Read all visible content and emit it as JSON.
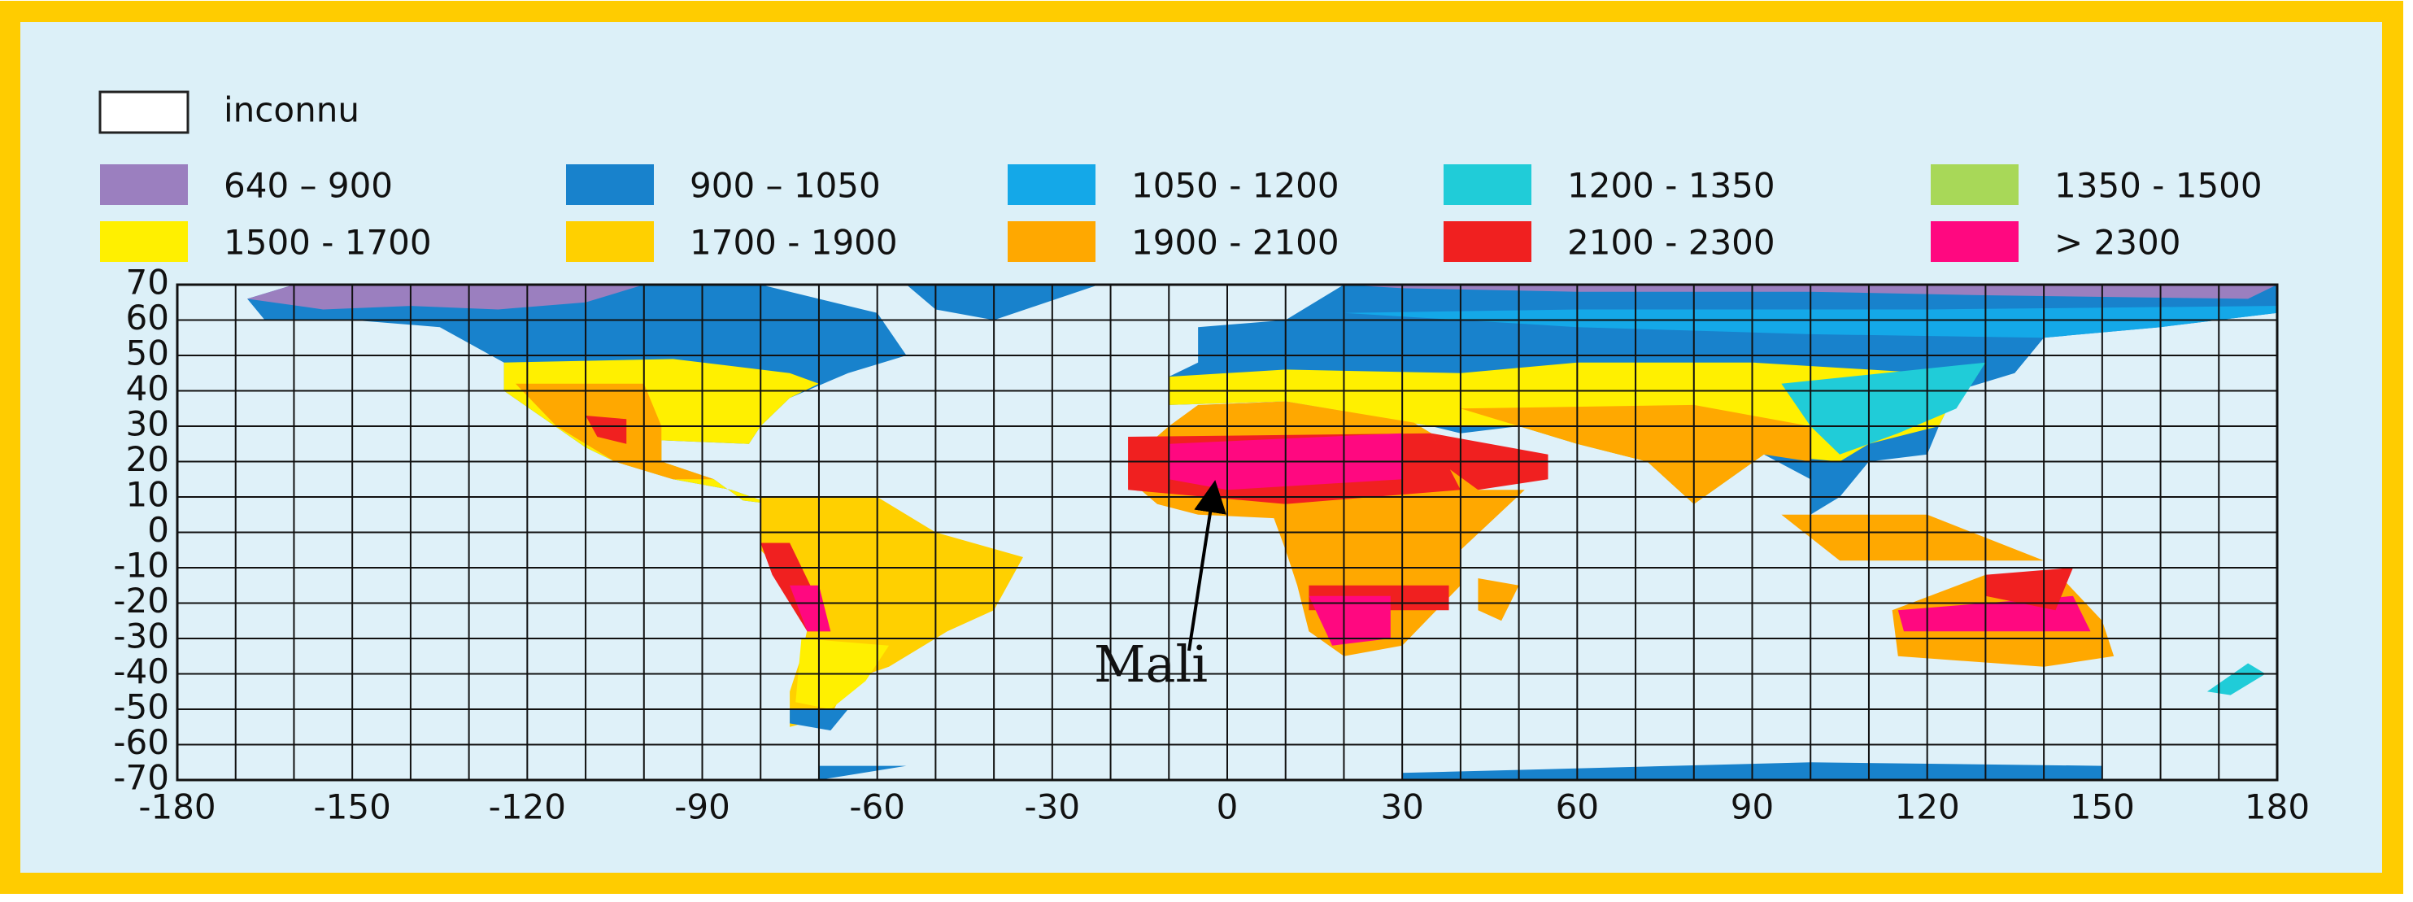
{
  "map": {
    "legend": [
      {
        "label": "inconnu",
        "color": "#ffffff"
      },
      {
        "label": "640 – 900",
        "color": "#9b7fbf"
      },
      {
        "label": "900 – 1050",
        "color": "#1882cc"
      },
      {
        "label": "1050 - 1200",
        "color": "#14a8e8"
      },
      {
        "label": "1200 - 1350",
        "color": "#20ccd8"
      },
      {
        "label": "1350 - 1500",
        "color": "#a8d858"
      },
      {
        "label": "1500 - 1700",
        "color": "#fff000"
      },
      {
        "label": "1700 - 1900",
        "color": "#ffd000"
      },
      {
        "label": "1900 - 2100",
        "color": "#ffa800"
      },
      {
        "label": "2100 - 2300",
        "color": "#f02020"
      },
      {
        "label": "> 2300",
        "color": "#ff0880"
      }
    ],
    "xlim": [
      -180,
      180
    ],
    "ylim": [
      -70,
      70
    ],
    "xticks": [
      -180,
      -150,
      -120,
      -90,
      -60,
      -30,
      0,
      30,
      60,
      90,
      120,
      150,
      180
    ],
    "yticks": [
      70,
      60,
      50,
      40,
      30,
      20,
      10,
      0,
      -10,
      -20,
      -30,
      -40,
      -50,
      -60,
      -70
    ],
    "annotation": "Mali"
  }
}
